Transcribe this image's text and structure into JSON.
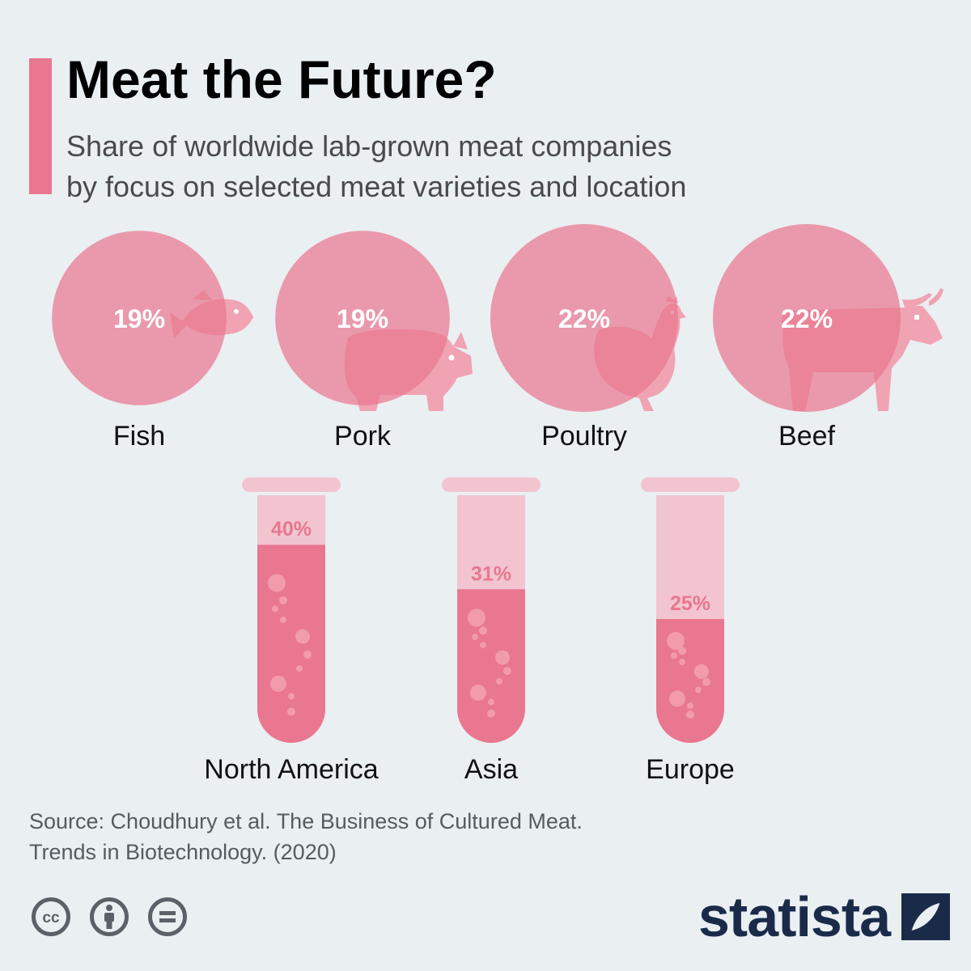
{
  "header": {
    "title": "Meat the Future?",
    "subtitle_lines": [
      "Share of worldwide lab-grown meat companies",
      "by focus on selected meat varieties and location"
    ]
  },
  "colors": {
    "accent": "#e9778f",
    "circle": "#e9778f",
    "icon": "#e4546f",
    "icon_light": "#f0a3b2",
    "tube_empty": "#f2c4d0",
    "tube_fill": "#e9778f",
    "background": "#eaeff2",
    "brand": "#1a2b4a"
  },
  "chart_data": [
    {
      "type": "bubble",
      "categories": [
        "Fish",
        "Pork",
        "Poultry",
        "Beef"
      ],
      "values": [
        19,
        19,
        22,
        22
      ],
      "value_labels": [
        "19%",
        "19%",
        "22%",
        "22%"
      ],
      "icons": [
        "fish-icon",
        "pig-icon",
        "chicken-icon",
        "cow-icon"
      ]
    },
    {
      "type": "bar",
      "categories": [
        "North America",
        "Asia",
        "Europe"
      ],
      "values": [
        40,
        31,
        25
      ],
      "value_labels": [
        "40%",
        "31%",
        "25%"
      ],
      "ylim": [
        0,
        50
      ]
    }
  ],
  "footer": {
    "source_lines": [
      "Source: Choudhury et al. The Business of Cultured Meat.",
      "Trends in Biotechnology. (2020)"
    ],
    "license_icons": [
      "cc-icon",
      "attribution-icon",
      "no-derivatives-icon"
    ],
    "brand": "statista"
  }
}
